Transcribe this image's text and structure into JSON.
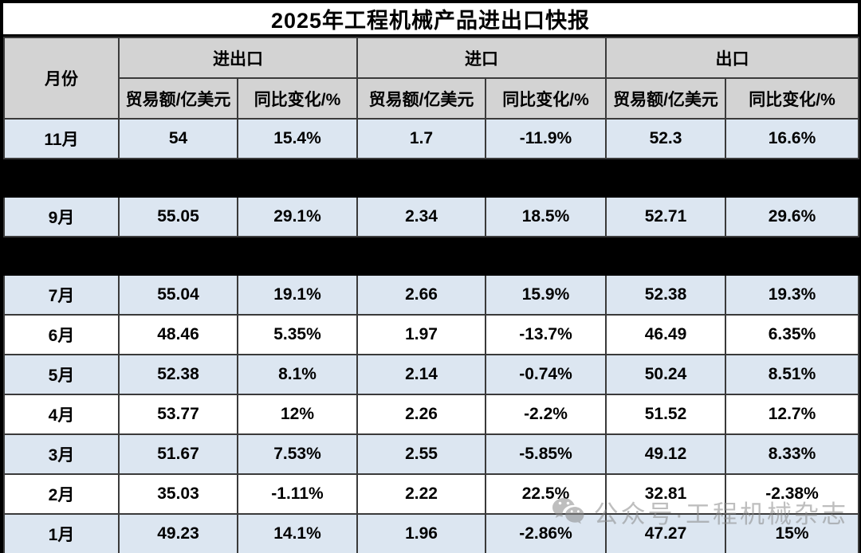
{
  "title": "2025年工程机械产品进出口快报",
  "table": {
    "month_header": "月份",
    "groups": [
      {
        "label": "进出口"
      },
      {
        "label": "进口"
      },
      {
        "label": "出口"
      }
    ],
    "sub_headers": [
      "贸易额/亿美元",
      "同比变化/%"
    ],
    "rows": [
      {
        "type": "data",
        "shade": "blue",
        "month": "11月",
        "cells": [
          "54",
          "15.4%",
          "1.7",
          "-11.9%",
          "52.3",
          "16.6%"
        ]
      },
      {
        "type": "redacted"
      },
      {
        "type": "data",
        "shade": "blue",
        "month": "9月",
        "cells": [
          "55.05",
          "29.1%",
          "2.34",
          "18.5%",
          "52.71",
          "29.6%"
        ]
      },
      {
        "type": "redacted"
      },
      {
        "type": "data",
        "shade": "blue",
        "month": "7月",
        "cells": [
          "55.04",
          "19.1%",
          "2.66",
          "15.9%",
          "52.38",
          "19.3%"
        ]
      },
      {
        "type": "data",
        "shade": "white",
        "month": "6月",
        "cells": [
          "48.46",
          "5.35%",
          "1.97",
          "-13.7%",
          "46.49",
          "6.35%"
        ]
      },
      {
        "type": "data",
        "shade": "blue",
        "month": "5月",
        "cells": [
          "52.38",
          "8.1%",
          "2.14",
          "-0.74%",
          "50.24",
          "8.51%"
        ]
      },
      {
        "type": "data",
        "shade": "white",
        "month": "4月",
        "cells": [
          "53.77",
          "12%",
          "2.26",
          "-2.2%",
          "51.52",
          "12.7%"
        ]
      },
      {
        "type": "data",
        "shade": "blue",
        "month": "3月",
        "cells": [
          "51.67",
          "7.53%",
          "2.55",
          "-5.85%",
          "49.12",
          "8.33%"
        ]
      },
      {
        "type": "data",
        "shade": "white",
        "month": "2月",
        "cells": [
          "35.03",
          "-1.11%",
          "2.22",
          "22.5%",
          "32.81",
          "-2.38%"
        ]
      },
      {
        "type": "data",
        "shade": "blue",
        "month": "1月",
        "cells": [
          "49.23",
          "14.1%",
          "1.96",
          "-2.86%",
          "47.27",
          "15%"
        ]
      }
    ]
  },
  "watermark": {
    "icon": "wechat-icon",
    "text": "公众号·工程机械杂志"
  },
  "colors": {
    "header_bg": "#d3d3d3",
    "row_blue": "#dce6f1",
    "row_white": "#ffffff",
    "redacted_bar": "#000000",
    "border": "#3a3a3a",
    "outer_border": "#000000",
    "watermark_gray": "#8a8a8a"
  },
  "chart_data": {
    "type": "table",
    "title": "2025年工程机械产品进出口快报",
    "columns": [
      "月份",
      "进出口 贸易额/亿美元",
      "进出口 同比变化/%",
      "进口 贸易额/亿美元",
      "进口 同比变化/%",
      "出口 贸易额/亿美元",
      "出口 同比变化/%"
    ],
    "rows": [
      [
        "11月",
        54,
        "15.4%",
        1.7,
        "-11.9%",
        52.3,
        "16.6%"
      ],
      [
        "9月",
        55.05,
        "29.1%",
        2.34,
        "18.5%",
        52.71,
        "29.6%"
      ],
      [
        "7月",
        55.04,
        "19.1%",
        2.66,
        "15.9%",
        52.38,
        "19.3%"
      ],
      [
        "6月",
        48.46,
        "5.35%",
        1.97,
        "-13.7%",
        46.49,
        "6.35%"
      ],
      [
        "5月",
        52.38,
        "8.1%",
        2.14,
        "-0.74%",
        50.24,
        "8.51%"
      ],
      [
        "4月",
        53.77,
        "12%",
        2.26,
        "-2.2%",
        51.52,
        "12.7%"
      ],
      [
        "3月",
        51.67,
        "7.53%",
        2.55,
        "-5.85%",
        49.12,
        "8.33%"
      ],
      [
        "2月",
        35.03,
        "-1.11%",
        2.22,
        "22.5%",
        32.81,
        "-2.38%"
      ],
      [
        "1月",
        49.23,
        "14.1%",
        1.96,
        "-2.86%",
        47.27,
        "15%"
      ]
    ],
    "redacted_row_positions_in_display_order": [
      1,
      3
    ]
  }
}
